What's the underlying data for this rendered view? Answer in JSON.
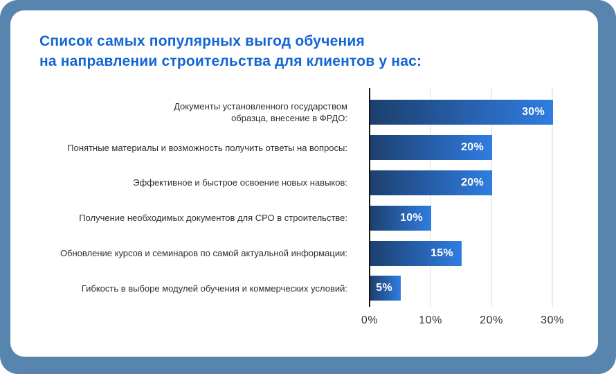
{
  "page": {
    "frame_color": "#5785ad",
    "card_color": "#ffffff"
  },
  "title": {
    "lines": [
      "Список самых популярных выгод обучения",
      "на направлении строительства для клиентов у нас:"
    ],
    "color": "#1165d4"
  },
  "chart_data": {
    "type": "bar",
    "orientation": "horizontal",
    "title": "Список самых популярных выгод обучения на направлении строительства для клиентов у нас:",
    "categories": [
      "Документы установленного государством образца, внесение в ФРДО:",
      "Понятные материалы и возможность получить ответы на вопросы:",
      "Эффективное и быстрое освоение новых навыков:",
      "Получение необходимых документов для СРО в строительстве:",
      "Обновление курсов и семинаров по самой актуальной информации:",
      "Гибкость в выборе модулей обучения и коммерческих условий:"
    ],
    "values": [
      30,
      20,
      20,
      10,
      15,
      5
    ],
    "value_labels": [
      "30%",
      "20%",
      "20%",
      "10%",
      "15%",
      "5%"
    ],
    "x_ticks": [
      "0%",
      "10%",
      "20%",
      "30%"
    ],
    "x_tick_values": [
      0,
      10,
      20,
      30
    ],
    "xlim": [
      0,
      31.5
    ],
    "grid": true,
    "legend": "none",
    "bar_gradient_start": "#1d3f6e",
    "bar_gradient_end": "#2f7de2",
    "axis_color": "#141414",
    "gridline_color": "#ededed",
    "tick_color": "#333333",
    "label_color": "#2e2e2e"
  }
}
